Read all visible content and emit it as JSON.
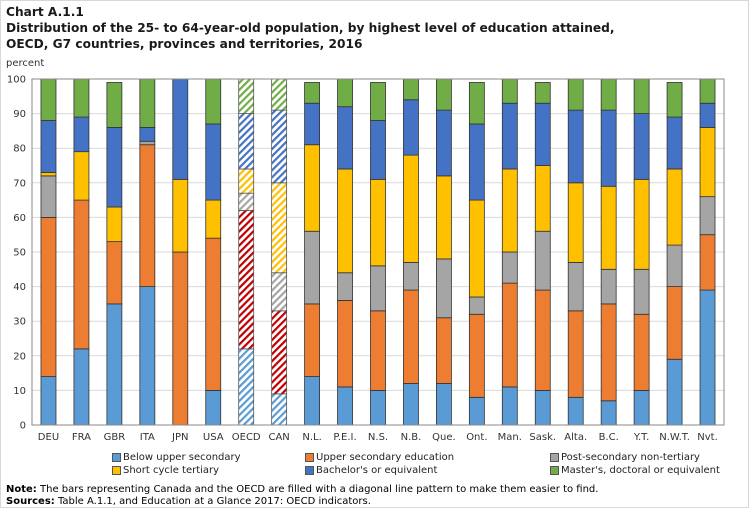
{
  "title_line1": "Chart A.1.1",
  "title_line2": "Distribution  of the 25- to 64-year-old population, by highest level of education attained,",
  "title_line3": "OECD, G7 countries, provinces and territories, 2016",
  "note_label": "Note:",
  "note_text": " The bars representing Canada and the OECD are filled with a diagonal line pattern to make them easier to find.",
  "sources_label": "Sources:",
  "sources_text": " Table A.1.1, and Education at a Glance 2017: OECD indicators.",
  "chart_data": {
    "type": "bar",
    "stacked": true,
    "title": "Distribution of the 25- to 64-year-old population, by highest level of education attained, OECD, G7 countries, provinces and territories, 2016",
    "xlabel": "",
    "ylabel": "percent",
    "ylim": [
      0,
      100
    ],
    "yticks": [
      0,
      10,
      20,
      30,
      40,
      50,
      60,
      70,
      80,
      90,
      100
    ],
    "grid": true,
    "legend_position": "bottom",
    "categories": [
      "DEU",
      "FRA",
      "GBR",
      "ITA",
      "JPN",
      "USA",
      "OECD",
      "CAN",
      "N.L.",
      "P.E.I.",
      "N.S.",
      "N.B.",
      "Que.",
      "Ont.",
      "Man.",
      "Sask.",
      "Alta.",
      "B.C.",
      "Y.T.",
      "N.W.T.",
      "Nvt."
    ],
    "patterned_categories": [
      "OECD",
      "CAN"
    ],
    "series": [
      {
        "name": "Below upper secondary",
        "color": "#5b9bd5",
        "values": [
          14,
          22,
          35,
          40,
          0,
          10,
          22,
          9,
          14,
          11,
          10,
          12,
          12,
          8,
          11,
          10,
          8,
          7,
          10,
          19,
          39
        ]
      },
      {
        "name": "Upper secondary education",
        "color": "#ed7d31",
        "pattern_color": "#c00000",
        "values": [
          46,
          43,
          18,
          41,
          50,
          44,
          40,
          24,
          21,
          25,
          23,
          27,
          19,
          24,
          30,
          29,
          25,
          28,
          22,
          21,
          16
        ]
      },
      {
        "name": "Post-secondary non-tertiary",
        "color": "#a5a5a5",
        "values": [
          12,
          0,
          0,
          1,
          0,
          0,
          5,
          11,
          21,
          8,
          13,
          8,
          17,
          5,
          9,
          17,
          14,
          10,
          13,
          12,
          11
        ]
      },
      {
        "name": "Short cycle tertiary",
        "color": "#ffc000",
        "values": [
          1,
          14,
          10,
          0,
          21,
          11,
          7,
          26,
          25,
          30,
          25,
          31,
          24,
          28,
          24,
          19,
          23,
          24,
          26,
          22,
          20
        ]
      },
      {
        "name": "Bachelor's or equivalent",
        "color": "#4472c4",
        "values": [
          15,
          10,
          23,
          4,
          29,
          22,
          16,
          21,
          12,
          18,
          17,
          16,
          19,
          22,
          19,
          18,
          21,
          22,
          19,
          15,
          7
        ]
      },
      {
        "name": "Master's, doctoral or equivalent",
        "color": "#70ad47",
        "values": [
          12,
          11,
          13,
          14,
          0,
          13,
          10,
          9,
          6,
          8,
          11,
          6,
          9,
          12,
          7,
          6,
          9,
          9,
          10,
          10,
          7
        ]
      }
    ]
  }
}
